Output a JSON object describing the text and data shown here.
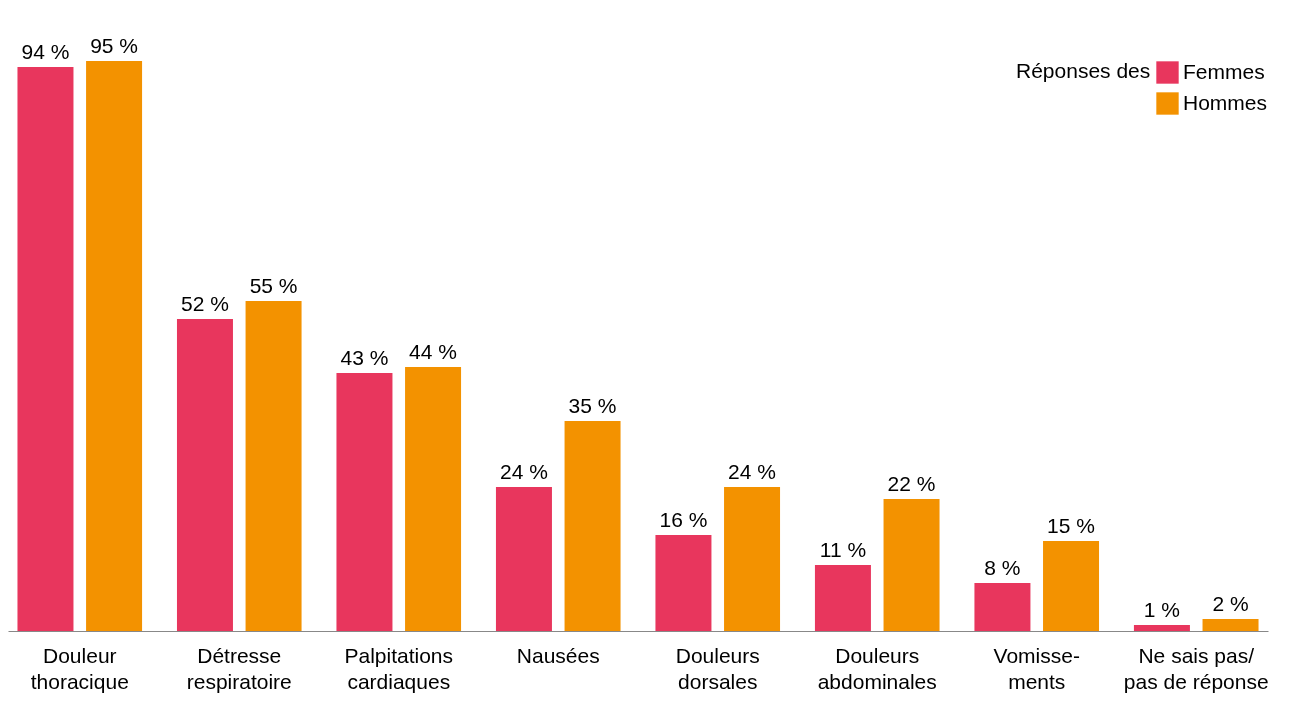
{
  "chart_data": {
    "type": "bar",
    "legend_title": "Réponses des",
    "legend": "top right",
    "grid": false,
    "categories": [
      "Douleur\nthoracique",
      "Détresse\nrespiratoire",
      "Palpitations\ncardiaques",
      "Nausées",
      "Douleurs\ndorsales",
      "Douleurs\nabdominales",
      "Vomisse-\nments",
      "Ne sais pas/\npas de réponse"
    ],
    "series": [
      {
        "name": "Femmes",
        "color": "#e8365d",
        "values": [
          94,
          52,
          43,
          24,
          16,
          11,
          8,
          1
        ],
        "value_labels": [
          "94 %",
          "52 %",
          "43 %",
          "24 %",
          "16 %",
          "11 %",
          "8 %",
          "1 %"
        ]
      },
      {
        "name": "Hommes",
        "color": "#f39200",
        "values": [
          95,
          55,
          44,
          35,
          24,
          22,
          15,
          2
        ],
        "value_labels": [
          "95 %",
          "55 %",
          "44 %",
          "35 %",
          "24 %",
          "22 %",
          "15 %",
          "2 %"
        ]
      }
    ]
  }
}
